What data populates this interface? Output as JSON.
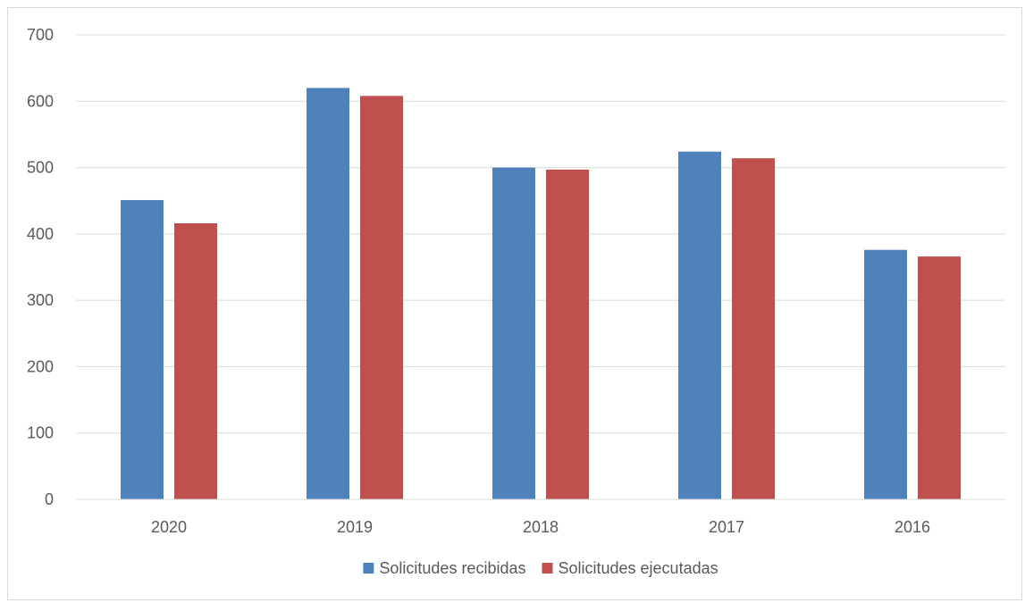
{
  "chart_data": {
    "type": "bar",
    "categories": [
      "2020",
      "2019",
      "2018",
      "2017",
      "2016"
    ],
    "series": [
      {
        "name": "Solicitudes recibidas",
        "values": [
          451,
          620,
          500,
          524,
          376
        ],
        "color": "#4f81bd"
      },
      {
        "name": "Solicitudes ejecutadas",
        "values": [
          416,
          608,
          497,
          514,
          366
        ],
        "color": "#c0504d"
      }
    ],
    "ylim": [
      0,
      700
    ],
    "yticks": [
      0,
      100,
      200,
      300,
      400,
      500,
      600,
      700
    ],
    "grid": true,
    "legend_position": "bottom",
    "title": "",
    "xlabel": "",
    "ylabel": ""
  }
}
